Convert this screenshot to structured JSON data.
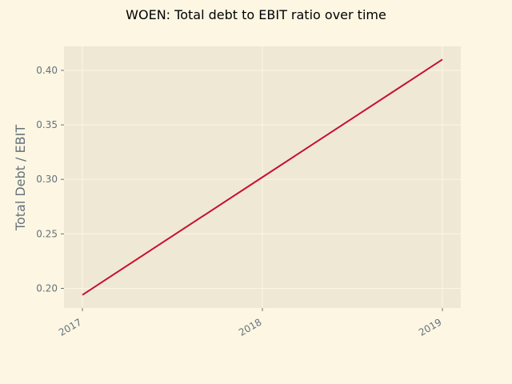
{
  "chart_data": {
    "type": "line",
    "title": "WOEN: Total debt to EBIT ratio over time",
    "xlabel": "",
    "ylabel": "Total Debt / EBIT",
    "x": [
      "2017",
      "2018",
      "2019"
    ],
    "series": [
      {
        "values": [
          0.194,
          0.302,
          0.41
        ],
        "color": "#c8102e"
      }
    ],
    "xticks": [
      "2017",
      "2018",
      "2019"
    ],
    "yticks": [
      "0.20",
      "0.25",
      "0.30",
      "0.35",
      "0.40"
    ],
    "ylim": [
      0.182,
      0.422
    ],
    "grid": true
  },
  "colors": {
    "background": "#fdf6e3",
    "plot_background": "#eee8d5",
    "grid": "#fdf6e3",
    "text_muted": "#65727a"
  }
}
